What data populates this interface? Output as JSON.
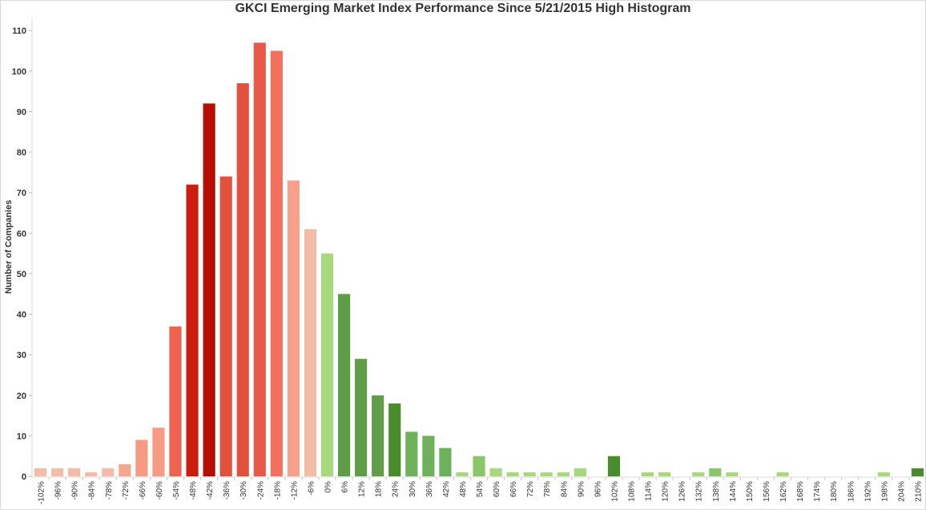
{
  "chart_data": {
    "type": "bar",
    "title": "GKCI Emerging Market Index Performance Since 5/21/2015 High Histogram",
    "xlabel": "",
    "ylabel": "Number of Companies",
    "ylim": [
      0,
      113
    ],
    "yticks": [
      0,
      10,
      20,
      30,
      40,
      50,
      60,
      70,
      80,
      90,
      100,
      110
    ],
    "grid": false,
    "categories": [
      "-102%",
      "-96%",
      "-90%",
      "-84%",
      "-78%",
      "-72%",
      "-66%",
      "-60%",
      "-54%",
      "-48%",
      "-42%",
      "-36%",
      "-30%",
      "-24%",
      "-18%",
      "-12%",
      "-6%",
      "0%",
      "6%",
      "12%",
      "18%",
      "24%",
      "30%",
      "36%",
      "42%",
      "48%",
      "54%",
      "60%",
      "66%",
      "72%",
      "78%",
      "84%",
      "90%",
      "96%",
      "102%",
      "108%",
      "114%",
      "120%",
      "126%",
      "132%",
      "138%",
      "144%",
      "150%",
      "156%",
      "162%",
      "168%",
      "174%",
      "180%",
      "186%",
      "192%",
      "198%",
      "204%",
      "210%"
    ],
    "values": [
      2,
      2,
      2,
      1,
      2,
      3,
      9,
      12,
      37,
      72,
      92,
      74,
      97,
      107,
      105,
      73,
      61,
      55,
      45,
      29,
      20,
      18,
      11,
      10,
      7,
      1,
      5,
      2,
      1,
      1,
      1,
      1,
      2,
      0,
      5,
      0,
      1,
      1,
      0,
      1,
      2,
      1,
      0,
      0,
      1,
      0,
      0,
      0,
      0,
      0,
      1,
      0,
      2
    ],
    "colors": [
      "#f4bba6",
      "#f4bba6",
      "#f4bba6",
      "#f4bba6",
      "#f4bba6",
      "#f2a88f",
      "#f79a84",
      "#f79a84",
      "#ee6450",
      "#cc1d10",
      "#b70e04",
      "#e2503e",
      "#e2503e",
      "#e8594a",
      "#f2705c",
      "#f7a08c",
      "#f4bba6",
      "#a7d97c",
      "#5f9e46",
      "#5f9e46",
      "#5f9e46",
      "#4a8b2c",
      "#6db25a",
      "#6db25a",
      "#6db25a",
      "#a7d97c",
      "#8cc66a",
      "#a7d97c",
      "#a7d97c",
      "#a7d97c",
      "#a7d97c",
      "#a7d97c",
      "#a7d97c",
      "#a7d97c",
      "#4a8b2c",
      "#a7d97c",
      "#a7d97c",
      "#a7d97c",
      "#a7d97c",
      "#a7d97c",
      "#8cc66a",
      "#a7d97c",
      "#a7d97c",
      "#a7d97c",
      "#a7d97c",
      "#a7d97c",
      "#a7d97c",
      "#a7d97c",
      "#a7d97c",
      "#a7d97c",
      "#a7d97c",
      "#a7d97c",
      "#4a8b2c"
    ]
  }
}
